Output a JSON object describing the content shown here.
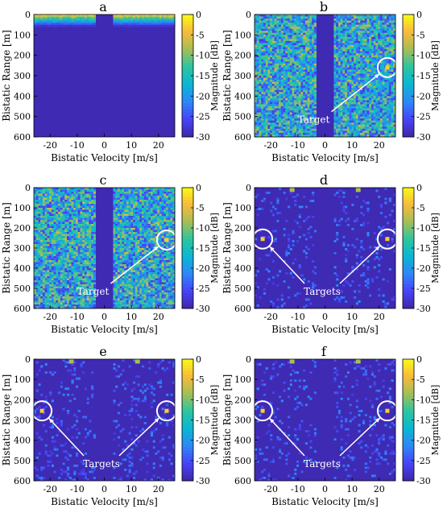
{
  "figure": {
    "colormap": [
      "#3e26a8",
      "#4743f8",
      "#2e87f7",
      "#0ab6d4",
      "#2cc5a0",
      "#a4be56",
      "#f7ba3c",
      "#f9fb15"
    ]
  },
  "chart_data": [
    {
      "type": "heatmap",
      "panel": "a",
      "xlabel": "Bistatic Velocity [m/s]",
      "ylabel": "Bistatic Range [m]",
      "x_ticks": [
        -20,
        -10,
        0,
        10,
        20
      ],
      "y_ticks": [
        0,
        100,
        200,
        300,
        400,
        500,
        600
      ],
      "xlim": [
        -26,
        26
      ],
      "ylim": [
        600,
        0
      ],
      "colorbar": {
        "label": "Magnitude [dB]",
        "ticks": [
          0,
          -5,
          -10,
          -15,
          -20,
          -25,
          -30
        ],
        "range": [
          -30,
          0
        ]
      },
      "description_values": {
        "pattern": "strong return near zero range decaying with range; clutter notch |v|<3",
        "noise_floor_db": -30,
        "peak_db": 0
      },
      "targets": [],
      "annotation": ""
    },
    {
      "type": "heatmap",
      "panel": "b",
      "xlabel": "Bistatic Velocity [m/s]",
      "ylabel": "Bistatic Range [m]",
      "x_ticks": [
        -20,
        -10,
        0,
        10,
        20
      ],
      "y_ticks": [
        0,
        100,
        200,
        300,
        400,
        500,
        600
      ],
      "xlim": [
        -26,
        26
      ],
      "ylim": [
        600,
        0
      ],
      "colorbar": {
        "label": "Magnitude [dB]",
        "ticks": [
          0,
          -5,
          -10,
          -15,
          -20,
          -25,
          -30
        ],
        "range": [
          -30,
          0
        ]
      },
      "description_values": {
        "pattern": "dense noise -25 to -10 dB; clutter notch |v|<3",
        "noise_floor_db": -20
      },
      "targets": [
        {
          "velocity": 23,
          "range": 260
        }
      ],
      "annotation": "Target"
    },
    {
      "type": "heatmap",
      "panel": "c",
      "xlabel": "Bistatic Velocity [m/s]",
      "ylabel": "Bistatic Range [m]",
      "x_ticks": [
        -20,
        -10,
        0,
        10,
        20
      ],
      "y_ticks": [
        0,
        100,
        200,
        300,
        400,
        500,
        600
      ],
      "xlim": [
        -26,
        26
      ],
      "ylim": [
        600,
        0
      ],
      "colorbar": {
        "label": "Magnitude [dB]",
        "ticks": [
          0,
          -5,
          -10,
          -15,
          -20,
          -25,
          -30
        ],
        "range": [
          -30,
          0
        ]
      },
      "description_values": {
        "pattern": "dense noise -25 to -10 dB; clutter notch |v|<3",
        "noise_floor_db": -20
      },
      "targets": [
        {
          "velocity": 23,
          "range": 260
        }
      ],
      "annotation": "Target"
    },
    {
      "type": "heatmap",
      "panel": "d",
      "xlabel": "Bistatic Velocity [m/s]",
      "ylabel": "Bistatic Range [m]",
      "x_ticks": [
        -20,
        -10,
        0,
        10,
        20
      ],
      "y_ticks": [
        0,
        100,
        200,
        300,
        400,
        500,
        600
      ],
      "xlim": [
        -26,
        26
      ],
      "ylim": [
        600,
        0
      ],
      "colorbar": {
        "label": "Magnitude [dB]",
        "ticks": [
          0,
          -5,
          -10,
          -15,
          -20,
          -25,
          -30
        ],
        "range": [
          -30,
          0
        ]
      },
      "description_values": {
        "pattern": "sparse residual noise near -30 dB; clutter notch |v|<3",
        "noise_floor_db": -30
      },
      "targets": [
        {
          "velocity": -23,
          "range": 255
        },
        {
          "velocity": 23,
          "range": 255
        }
      ],
      "annotation": "Targets"
    },
    {
      "type": "heatmap",
      "panel": "e",
      "xlabel": "Bistatic Velocity [m/s]",
      "ylabel": "Bistatic Range [m]",
      "x_ticks": [
        -20,
        -10,
        0,
        10,
        20
      ],
      "y_ticks": [
        0,
        100,
        200,
        300,
        400,
        500,
        600
      ],
      "xlim": [
        -26,
        26
      ],
      "ylim": [
        600,
        0
      ],
      "colorbar": {
        "label": "Magnitude [dB]",
        "ticks": [
          0,
          -5,
          -10,
          -15,
          -20,
          -25,
          -30
        ],
        "range": [
          -30,
          0
        ]
      },
      "description_values": {
        "pattern": "sparse residual noise near -30 dB; clutter notch |v|<3",
        "noise_floor_db": -30
      },
      "targets": [
        {
          "velocity": -23,
          "range": 255
        },
        {
          "velocity": 23,
          "range": 255
        }
      ],
      "annotation": "Targets"
    },
    {
      "type": "heatmap",
      "panel": "f",
      "xlabel": "Bistatic Velocity [m/s]",
      "ylabel": "Bistatic Range [m]",
      "x_ticks": [
        -20,
        -10,
        0,
        10,
        20
      ],
      "y_ticks": [
        0,
        100,
        200,
        300,
        400,
        500,
        600
      ],
      "xlim": [
        -26,
        26
      ],
      "ylim": [
        600,
        0
      ],
      "colorbar": {
        "label": "Magnitude [dB]",
        "ticks": [
          0,
          -5,
          -10,
          -15,
          -20,
          -25,
          -30
        ],
        "range": [
          -30,
          0
        ]
      },
      "description_values": {
        "pattern": "sparse residual noise near -30 dB; clutter notch |v|<3",
        "noise_floor_db": -30
      },
      "targets": [
        {
          "velocity": -23,
          "range": 255
        },
        {
          "velocity": 23,
          "range": 255
        }
      ],
      "annotation": "Targets"
    }
  ]
}
